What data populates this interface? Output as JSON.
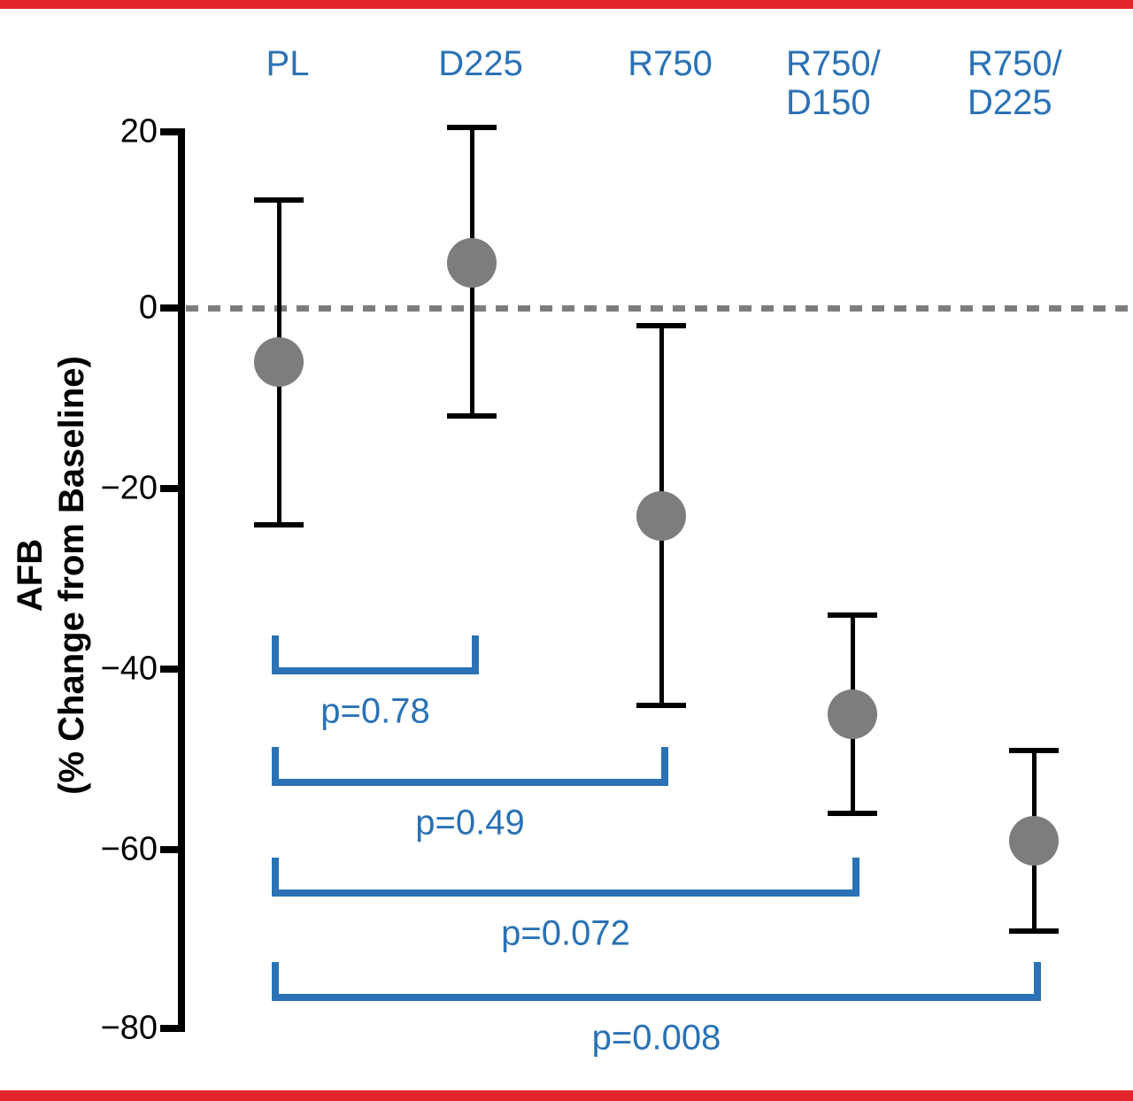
{
  "figure": {
    "description": "Point-estimate plot with 95% error bars of AFB percent change from baseline across five treatment groups, with pairwise p-value comparison brackets versus placebo",
    "top_border": true,
    "bottom_border": true
  },
  "colors": {
    "accent_blue": "#2a72b5",
    "marker_gray": "#7d7d7d",
    "zero_line_gray": "#7d7d7d",
    "border_red": "#e2242b",
    "axis_black": "#000000"
  },
  "axis": {
    "title_line1": "AFB",
    "title_line2": "(% Change from Baseline)",
    "y_ticks": [
      20,
      0,
      -20,
      -40,
      -60,
      -80
    ]
  },
  "chart_data": {
    "type": "scatter",
    "title": "",
    "xlabel": "",
    "ylabel": "AFB (% Change from Baseline)",
    "ylim": [
      -80,
      20
    ],
    "grid": false,
    "zero_reference_line": 0,
    "categories": [
      "PL",
      "D225",
      "R750",
      "R750/D150",
      "R750/D225"
    ],
    "series": [
      {
        "name": "Mean % change from baseline (with error bars)",
        "values": [
          -6,
          5,
          -23,
          -45,
          -59
        ],
        "error_low": [
          -24,
          -12,
          -44,
          -56,
          -69
        ],
        "error_high": [
          12,
          20,
          -2,
          -34,
          -49
        ]
      }
    ],
    "comparisons": [
      {
        "from": "PL",
        "to": "D225",
        "label": "p=0.78"
      },
      {
        "from": "PL",
        "to": "R750",
        "label": "p=0.49"
      },
      {
        "from": "PL",
        "to": "R750/D150",
        "label": "p=0.072"
      },
      {
        "from": "PL",
        "to": "R750/D225",
        "label": "p=0.008"
      }
    ]
  }
}
